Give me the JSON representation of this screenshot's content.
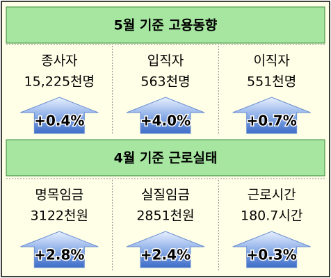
{
  "sections": [
    {
      "title": "5월 기준 고용동향",
      "items": [
        {
          "label": "종사자",
          "value": "15,225천명",
          "change": "+0.4%"
        },
        {
          "label": "입직자",
          "value": "563천명",
          "change": "+4.0%"
        },
        {
          "label": "이직자",
          "value": "551천명",
          "change": "+0.7%"
        }
      ]
    },
    {
      "title": "4월 기준 근로실태",
      "items": [
        {
          "label": "명목임금",
          "value": "3122천원",
          "change": "+2.8%"
        },
        {
          "label": "실질임금",
          "value": "2851천원",
          "change": "+2.4%"
        },
        {
          "label": "근로시간",
          "value": "180.7시간",
          "change": "+0.3%"
        }
      ]
    }
  ]
}
